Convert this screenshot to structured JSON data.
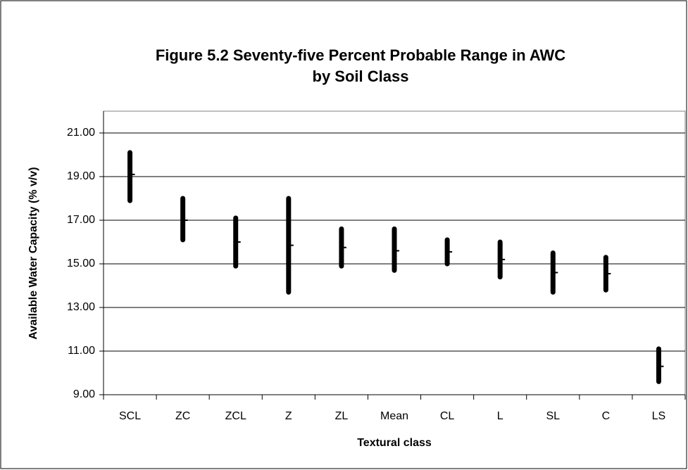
{
  "chart_data": {
    "type": "hilo",
    "title": [
      "Figure 5.2 Seventy-five Percent Probable Range in AWC",
      "by Soil Class"
    ],
    "x_label": "Textural class",
    "y_label": "Available Water Capacity (% v/v)",
    "categories": [
      "SCL",
      "ZC",
      "ZCL",
      "Z",
      "ZL",
      "Mean",
      "CL",
      "L",
      "SL",
      "C",
      "LS"
    ],
    "high": [
      20.1,
      18.0,
      17.1,
      18.0,
      16.6,
      16.6,
      16.1,
      16.0,
      15.5,
      15.3,
      11.1
    ],
    "low": [
      17.9,
      16.1,
      14.9,
      13.7,
      14.9,
      14.7,
      15.0,
      14.4,
      13.7,
      13.8,
      9.6
    ],
    "close": [
      19.1,
      17.0,
      16.0,
      15.85,
      15.75,
      15.6,
      15.55,
      15.2,
      14.6,
      14.55,
      10.3
    ],
    "color": "#000000",
    "ylim": [
      9,
      22
    ],
    "yticks": [
      {
        "value": 9,
        "label": "9.00"
      },
      {
        "value": 11,
        "label": "11.00"
      },
      {
        "value": 13,
        "label": "13.00"
      },
      {
        "value": 15,
        "label": "15.00"
      },
      {
        "value": 17,
        "label": "17.00"
      },
      {
        "value": 19,
        "label": "19.00"
      },
      {
        "value": 21,
        "label": "21.00"
      }
    ],
    "grid": true
  }
}
